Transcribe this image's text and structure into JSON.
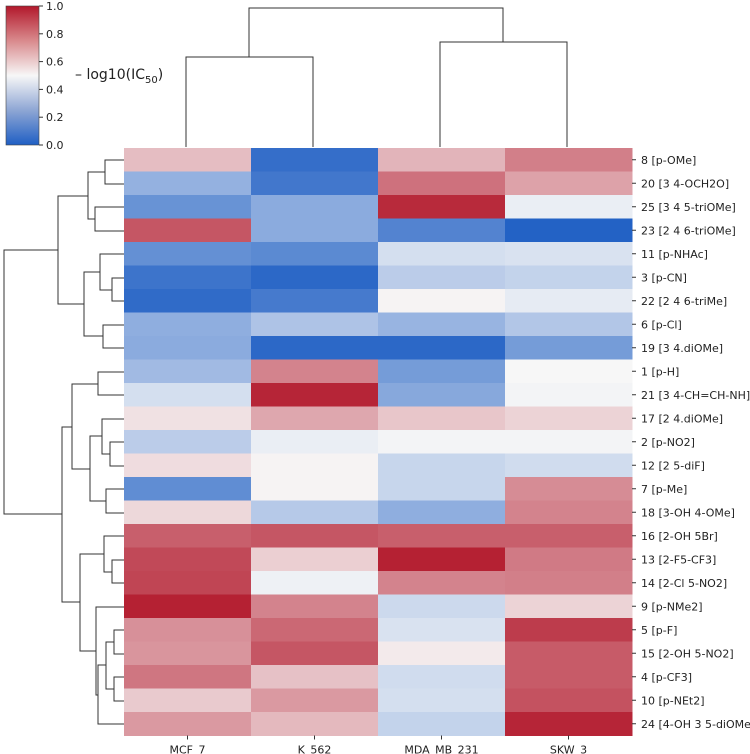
{
  "chart_data": {
    "type": "heatmap",
    "title": "",
    "colorbar": {
      "label_prefix": "– log10(IC",
      "label_sub": "50",
      "label_suffix": ")",
      "range": [
        0.0,
        1.0
      ],
      "ticks": [
        "0.0",
        "0.2",
        "0.4",
        "0.6",
        "0.8",
        "1.0"
      ],
      "colors": {
        "low": "#1f5fc4",
        "mid": "#f7f7f7",
        "high": "#b2182b"
      }
    },
    "columns": [
      "MCF_7",
      "K_562",
      "MDA_MB_231",
      "SKW_3"
    ],
    "rows": [
      {
        "label": "8  [p-OMe]",
        "values": [
          0.63,
          0.05,
          0.65,
          0.77
        ]
      },
      {
        "label": "20 [3 4-OCH2O]",
        "values": [
          0.27,
          0.08,
          0.8,
          0.69
        ]
      },
      {
        "label": "25 [3 4 5-triOMe]",
        "values": [
          0.17,
          0.25,
          0.96,
          0.47
        ]
      },
      {
        "label": "23 [2 4 6-triOMe]",
        "values": [
          0.86,
          0.25,
          0.12,
          0.01
        ]
      },
      {
        "label": "11 [p-NHAc]",
        "values": [
          0.16,
          0.14,
          0.42,
          0.43
        ]
      },
      {
        "label": "3  [p-CN]",
        "values": [
          0.07,
          0.03,
          0.36,
          0.38
        ]
      },
      {
        "label": "22 [2 4 6-triMe]",
        "values": [
          0.04,
          0.09,
          0.51,
          0.46
        ]
      },
      {
        "label": "6  [p-Cl]",
        "values": [
          0.26,
          0.33,
          0.28,
          0.34
        ]
      },
      {
        "label": "19 [3 4.diOMe]",
        "values": [
          0.25,
          0.03,
          0.03,
          0.2
        ]
      },
      {
        "label": "1  [p-H]",
        "values": [
          0.3,
          0.76,
          0.2,
          0.5
        ]
      },
      {
        "label": "21 [3 4-CH=CH-NH]",
        "values": [
          0.42,
          0.97,
          0.24,
          0.49
        ]
      },
      {
        "label": "17 [2 4.diOMe]",
        "values": [
          0.55,
          0.68,
          0.61,
          0.58
        ]
      },
      {
        "label": "2  [p-NO2]",
        "values": [
          0.36,
          0.47,
          0.49,
          0.49
        ]
      },
      {
        "label": "12 [2 5-diF]",
        "values": [
          0.56,
          0.51,
          0.39,
          0.41
        ]
      },
      {
        "label": "7  [p-Me]",
        "values": [
          0.15,
          0.51,
          0.39,
          0.74
        ]
      },
      {
        "label": "18 [3-OH 4-OMe]",
        "values": [
          0.57,
          0.35,
          0.26,
          0.76
        ]
      },
      {
        "label": "16 [2-OH 5Br]",
        "values": [
          0.84,
          0.86,
          0.84,
          0.84
        ]
      },
      {
        "label": "13 [2-F5-CF3]",
        "values": [
          0.89,
          0.59,
          0.98,
          0.78
        ]
      },
      {
        "label": "14 [2-Cl 5-NO2]",
        "values": [
          0.9,
          0.48,
          0.76,
          0.77
        ]
      },
      {
        "label": "9  [p-NMe2]",
        "values": [
          0.98,
          0.76,
          0.4,
          0.58
        ]
      },
      {
        "label": "5  [p-F]",
        "values": [
          0.73,
          0.82,
          0.43,
          0.92
        ]
      },
      {
        "label": "15 [2-OH 5-NO2]",
        "values": [
          0.72,
          0.86,
          0.53,
          0.85
        ]
      },
      {
        "label": "4  [p-CF3]",
        "values": [
          0.79,
          0.62,
          0.41,
          0.85
        ]
      },
      {
        "label": "10 [p-NEt2]",
        "values": [
          0.6,
          0.71,
          0.42,
          0.87
        ]
      },
      {
        "label": "24 [4-OH 3 5-diOMe]",
        "values": [
          0.71,
          0.64,
          0.38,
          0.97
        ]
      }
    ],
    "column_dendrogram": true,
    "row_dendrogram": true,
    "grid": false
  }
}
